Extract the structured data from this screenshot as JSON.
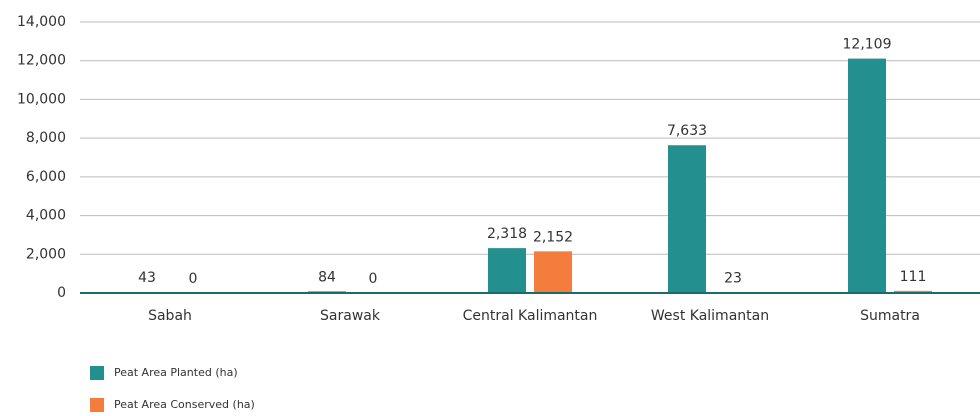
{
  "chart_data": {
    "type": "bar",
    "categories": [
      "Sabah",
      "Sarawak",
      "Central Kalimantan",
      "West Kalimantan",
      "Sumatra"
    ],
    "series": [
      {
        "name": "Peat Area Planted (ha)",
        "color": "#23908f",
        "values": [
          43,
          84,
          2318,
          7633,
          12109
        ],
        "value_labels": [
          "43",
          "84",
          "2,318",
          "7,633",
          "12,109"
        ]
      },
      {
        "name": "Peat Area Conserved (ha)",
        "color": "#f47c3c",
        "values": [
          0,
          0,
          2152,
          23,
          111
        ],
        "value_labels": [
          "0",
          "0",
          "2,152",
          "23",
          "111"
        ]
      }
    ],
    "ylim": [
      0,
      14000
    ],
    "yticks": [
      0,
      {
        "value": 2000,
        "label": "2,000"
      },
      {
        "value": 4000,
        "label": "4,000"
      },
      {
        "value": 6000,
        "label": "6,000"
      },
      {
        "value": 8000,
        "label": "8,000"
      },
      {
        "value": 10000,
        "label": "10,000"
      },
      {
        "value": 12000,
        "label": "12,000"
      },
      {
        "value": 14000,
        "label": "14,000"
      }
    ],
    "grid": true,
    "legend": "bottom-left"
  }
}
